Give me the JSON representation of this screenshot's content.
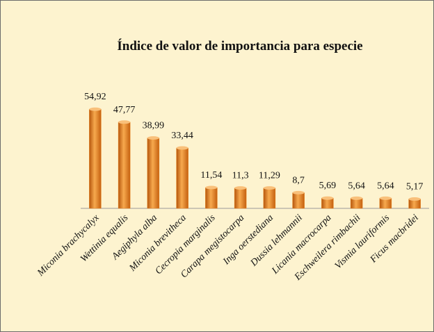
{
  "chart_data": {
    "type": "bar",
    "title": "Índice de valor de importancia para especie",
    "categories": [
      "Miconia brachycalyx",
      "Wettinia equalis",
      "Aegiphyla alba",
      "Miconia brevitheca",
      "Cecropia marginalis",
      "Carapa megistocarpa",
      "Inga oerstediana",
      "Dussia lehmannii",
      "Licania macrocarpa",
      "Eschweilera rimbachii",
      "Vismia lauriformis",
      "Ficus macbridei"
    ],
    "values": [
      54.92,
      47.77,
      38.99,
      33.44,
      11.54,
      11.3,
      11.29,
      8.7,
      5.69,
      5.64,
      5.64,
      5.17
    ],
    "value_labels": [
      "54,92",
      "47,77",
      "38,99",
      "33,44",
      "11,54",
      "11,3",
      "11,29",
      "8,7",
      "5,69",
      "5,64",
      "5,64",
      "5,17"
    ],
    "color": "#e8821f"
  }
}
